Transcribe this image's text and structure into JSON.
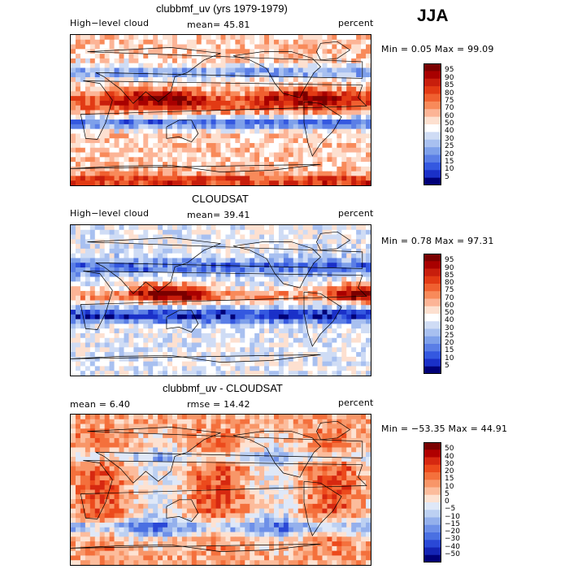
{
  "season": "JJA",
  "panels": [
    {
      "title": "clubbmf_uv (yrs 1979-1979)",
      "left_label": "High−level cloud",
      "center_label": "mean=  45.81",
      "right_label": "percent",
      "minmax": "Min =   0.05 Max =  99.09",
      "palette": "abs"
    },
    {
      "title": "CLOUDSAT",
      "left_label": "High−level cloud",
      "center_label": "mean=  39.41",
      "right_label": "percent",
      "minmax": "Min =   0.78 Max =  97.31",
      "palette": "abs"
    },
    {
      "title": "clubbmf_uv - CLOUDSAT",
      "left_label": "mean =    6.40",
      "center_label": "rmse =  14.42",
      "right_label": "percent",
      "minmax": "Min = −53.35 Max =  44.91",
      "palette": "diff"
    }
  ],
  "chart_data": [
    {
      "type": "heatmap",
      "title": "clubbmf_uv (yrs 1979-1979)",
      "variable": "High-level cloud",
      "units": "percent",
      "mean": 45.81,
      "min": 0.05,
      "max": 99.09,
      "colorbar_levels": [
        "95",
        "90",
        "85",
        "80",
        "75",
        "70",
        "60",
        "50",
        "40",
        "30",
        "25",
        "20",
        "15",
        "10",
        "5"
      ]
    },
    {
      "type": "heatmap",
      "title": "CLOUDSAT",
      "variable": "High-level cloud",
      "units": "percent",
      "mean": 39.41,
      "min": 0.78,
      "max": 97.31,
      "colorbar_levels": [
        "95",
        "90",
        "85",
        "80",
        "75",
        "70",
        "60",
        "50",
        "40",
        "30",
        "25",
        "20",
        "15",
        "10",
        "5"
      ]
    },
    {
      "type": "heatmap",
      "title": "clubbmf_uv - CLOUDSAT",
      "units": "percent",
      "mean": 6.4,
      "rmse": 14.42,
      "min": -53.35,
      "max": 44.91,
      "colorbar_levels": [
        "50",
        "40",
        "30",
        "20",
        "15",
        "10",
        "5",
        "0",
        "−5",
        "−10",
        "−15",
        "−20",
        "−30",
        "−40",
        "−50"
      ]
    }
  ],
  "colors": {
    "abs": [
      "#7a0000",
      "#a80000",
      "#c81e0c",
      "#e23a14",
      "#f06030",
      "#f88a5a",
      "#fcb496",
      "#fde0d0",
      "#ffffff",
      "#cfdcf5",
      "#a8c0f0",
      "#7ea0ea",
      "#5a7ee6",
      "#3458e0",
      "#1a30c8",
      "#000078"
    ],
    "diff": [
      "#7a0000",
      "#b00000",
      "#d62810",
      "#ec4a1c",
      "#f4703c",
      "#f89668",
      "#fcbc9c",
      "#fde2d2",
      "#dfe8f8",
      "#bcd0f2",
      "#94b0ec",
      "#6e90e8",
      "#4a70e2",
      "#2a48d6",
      "#1424b4",
      "#000078"
    ]
  }
}
